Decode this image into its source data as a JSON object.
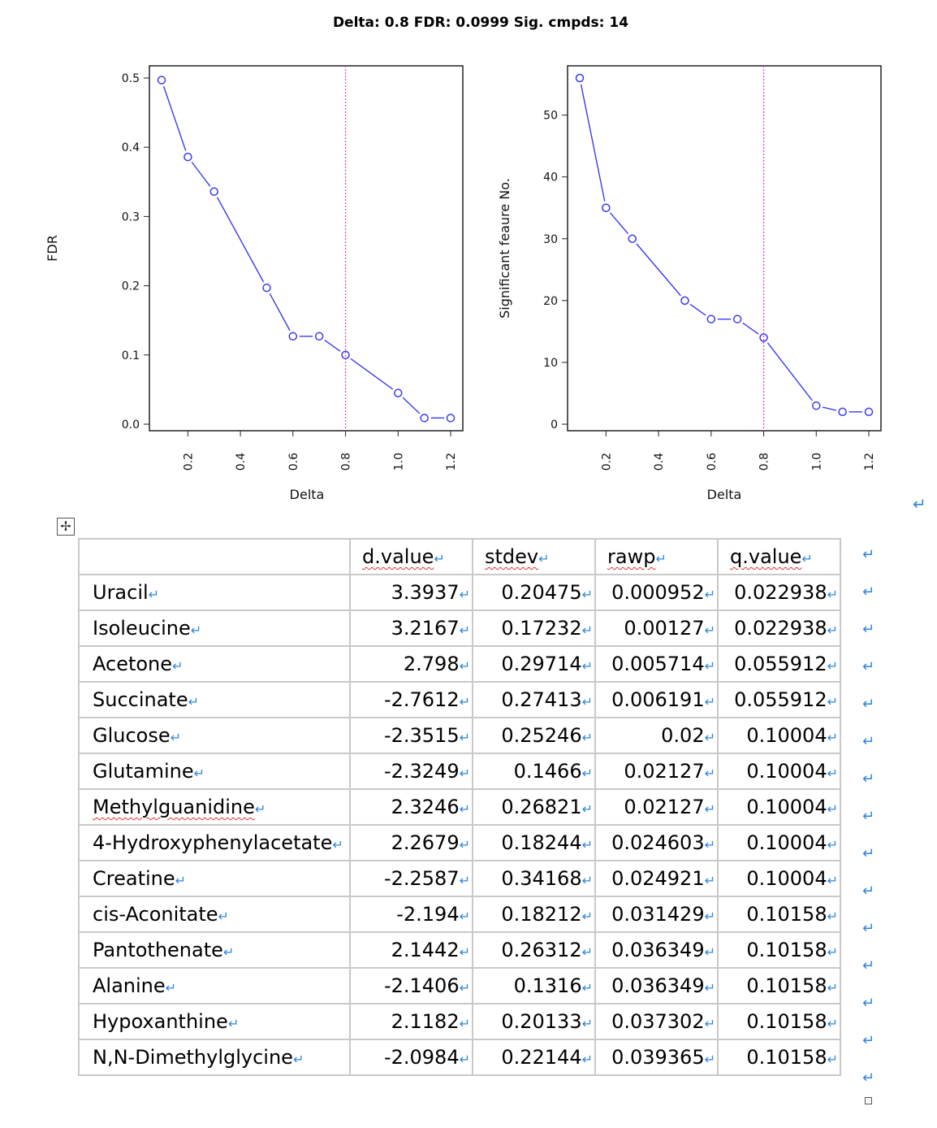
{
  "title": "Delta: 0.8   FDR: 0.0999   Sig. cmpds: 14",
  "chart_data": [
    {
      "type": "line",
      "xlabel": "Delta",
      "ylabel": "FDR",
      "xlim": [
        0.1,
        1.2
      ],
      "ylim": [
        0,
        0.5
      ],
      "xticks": [
        "0.2",
        "0.4",
        "0.6",
        "0.8",
        "1.0",
        "1.2"
      ],
      "yticks": [
        "0.0",
        "0.1",
        "0.2",
        "0.3",
        "0.4",
        "0.5"
      ],
      "x": [
        0.1,
        0.2,
        0.3,
        0.5,
        0.6,
        0.7,
        0.8,
        1.0,
        1.1,
        1.2
      ],
      "y": [
        0.497,
        0.386,
        0.336,
        0.197,
        0.127,
        0.127,
        0.1,
        0.045,
        0.009,
        0.009
      ],
      "vline": 0.8,
      "line_color": "#3a3af0",
      "vline_color": "#e040e0"
    },
    {
      "type": "line",
      "xlabel": "Delta",
      "ylabel": "Significant feaure No.",
      "xlim": [
        0.1,
        1.2
      ],
      "ylim": [
        0,
        56
      ],
      "xticks": [
        "0.2",
        "0.4",
        "0.6",
        "0.8",
        "1.0",
        "1.2"
      ],
      "yticks": [
        "0",
        "10",
        "20",
        "30",
        "40",
        "50"
      ],
      "x": [
        0.1,
        0.2,
        0.3,
        0.5,
        0.6,
        0.7,
        0.8,
        1.0,
        1.1,
        1.2
      ],
      "y": [
        56,
        35,
        30,
        20,
        17,
        17,
        14,
        3,
        2,
        2
      ],
      "vline": 0.8,
      "line_color": "#3a3af0",
      "vline_color": "#e040e0"
    }
  ],
  "table": {
    "headers": [
      "",
      "d.value",
      "stdev",
      "rawp",
      "q.value"
    ],
    "rows": [
      [
        "Uracil",
        "3.3937",
        "0.20475",
        "0.000952",
        "0.022938"
      ],
      [
        "Isoleucine",
        "3.2167",
        "0.17232",
        "0.00127",
        "0.022938"
      ],
      [
        "Acetone",
        "2.798",
        "0.29714",
        "0.005714",
        "0.055912"
      ],
      [
        "Succinate",
        "-2.7612",
        "0.27413",
        "0.006191",
        "0.055912"
      ],
      [
        "Glucose",
        "-2.3515",
        "0.25246",
        "0.02",
        "0.10004"
      ],
      [
        "Glutamine",
        "-2.3249",
        "0.1466",
        "0.02127",
        "0.10004"
      ],
      [
        "Methylguanidine",
        "2.3246",
        "0.26821",
        "0.02127",
        "0.10004"
      ],
      [
        "4-Hydroxyphenylacetate",
        "2.2679",
        "0.18244",
        "0.024603",
        "0.10004"
      ],
      [
        "Creatine",
        "-2.2587",
        "0.34168",
        "0.024921",
        "0.10004"
      ],
      [
        "cis-Aconitate",
        "-2.194",
        "0.18212",
        "0.031429",
        "0.10158"
      ],
      [
        "Pantothenate",
        "2.1442",
        "0.26312",
        "0.036349",
        "0.10158"
      ],
      [
        "Alanine",
        "-2.1406",
        "0.1316",
        "0.036349",
        "0.10158"
      ],
      [
        "Hypoxanthine",
        "2.1182",
        "0.20133",
        "0.037302",
        "0.10158"
      ],
      [
        "N,N-Dimethylglycine",
        "-2.0984",
        "0.22144",
        "0.039365",
        "0.10158"
      ]
    ]
  },
  "marks": {
    "return": "↵",
    "cell_end": "⏎",
    "move_handle": "✢"
  },
  "icons": {
    "move_handle": "move-icon",
    "resize_handle": "resize-icon"
  }
}
